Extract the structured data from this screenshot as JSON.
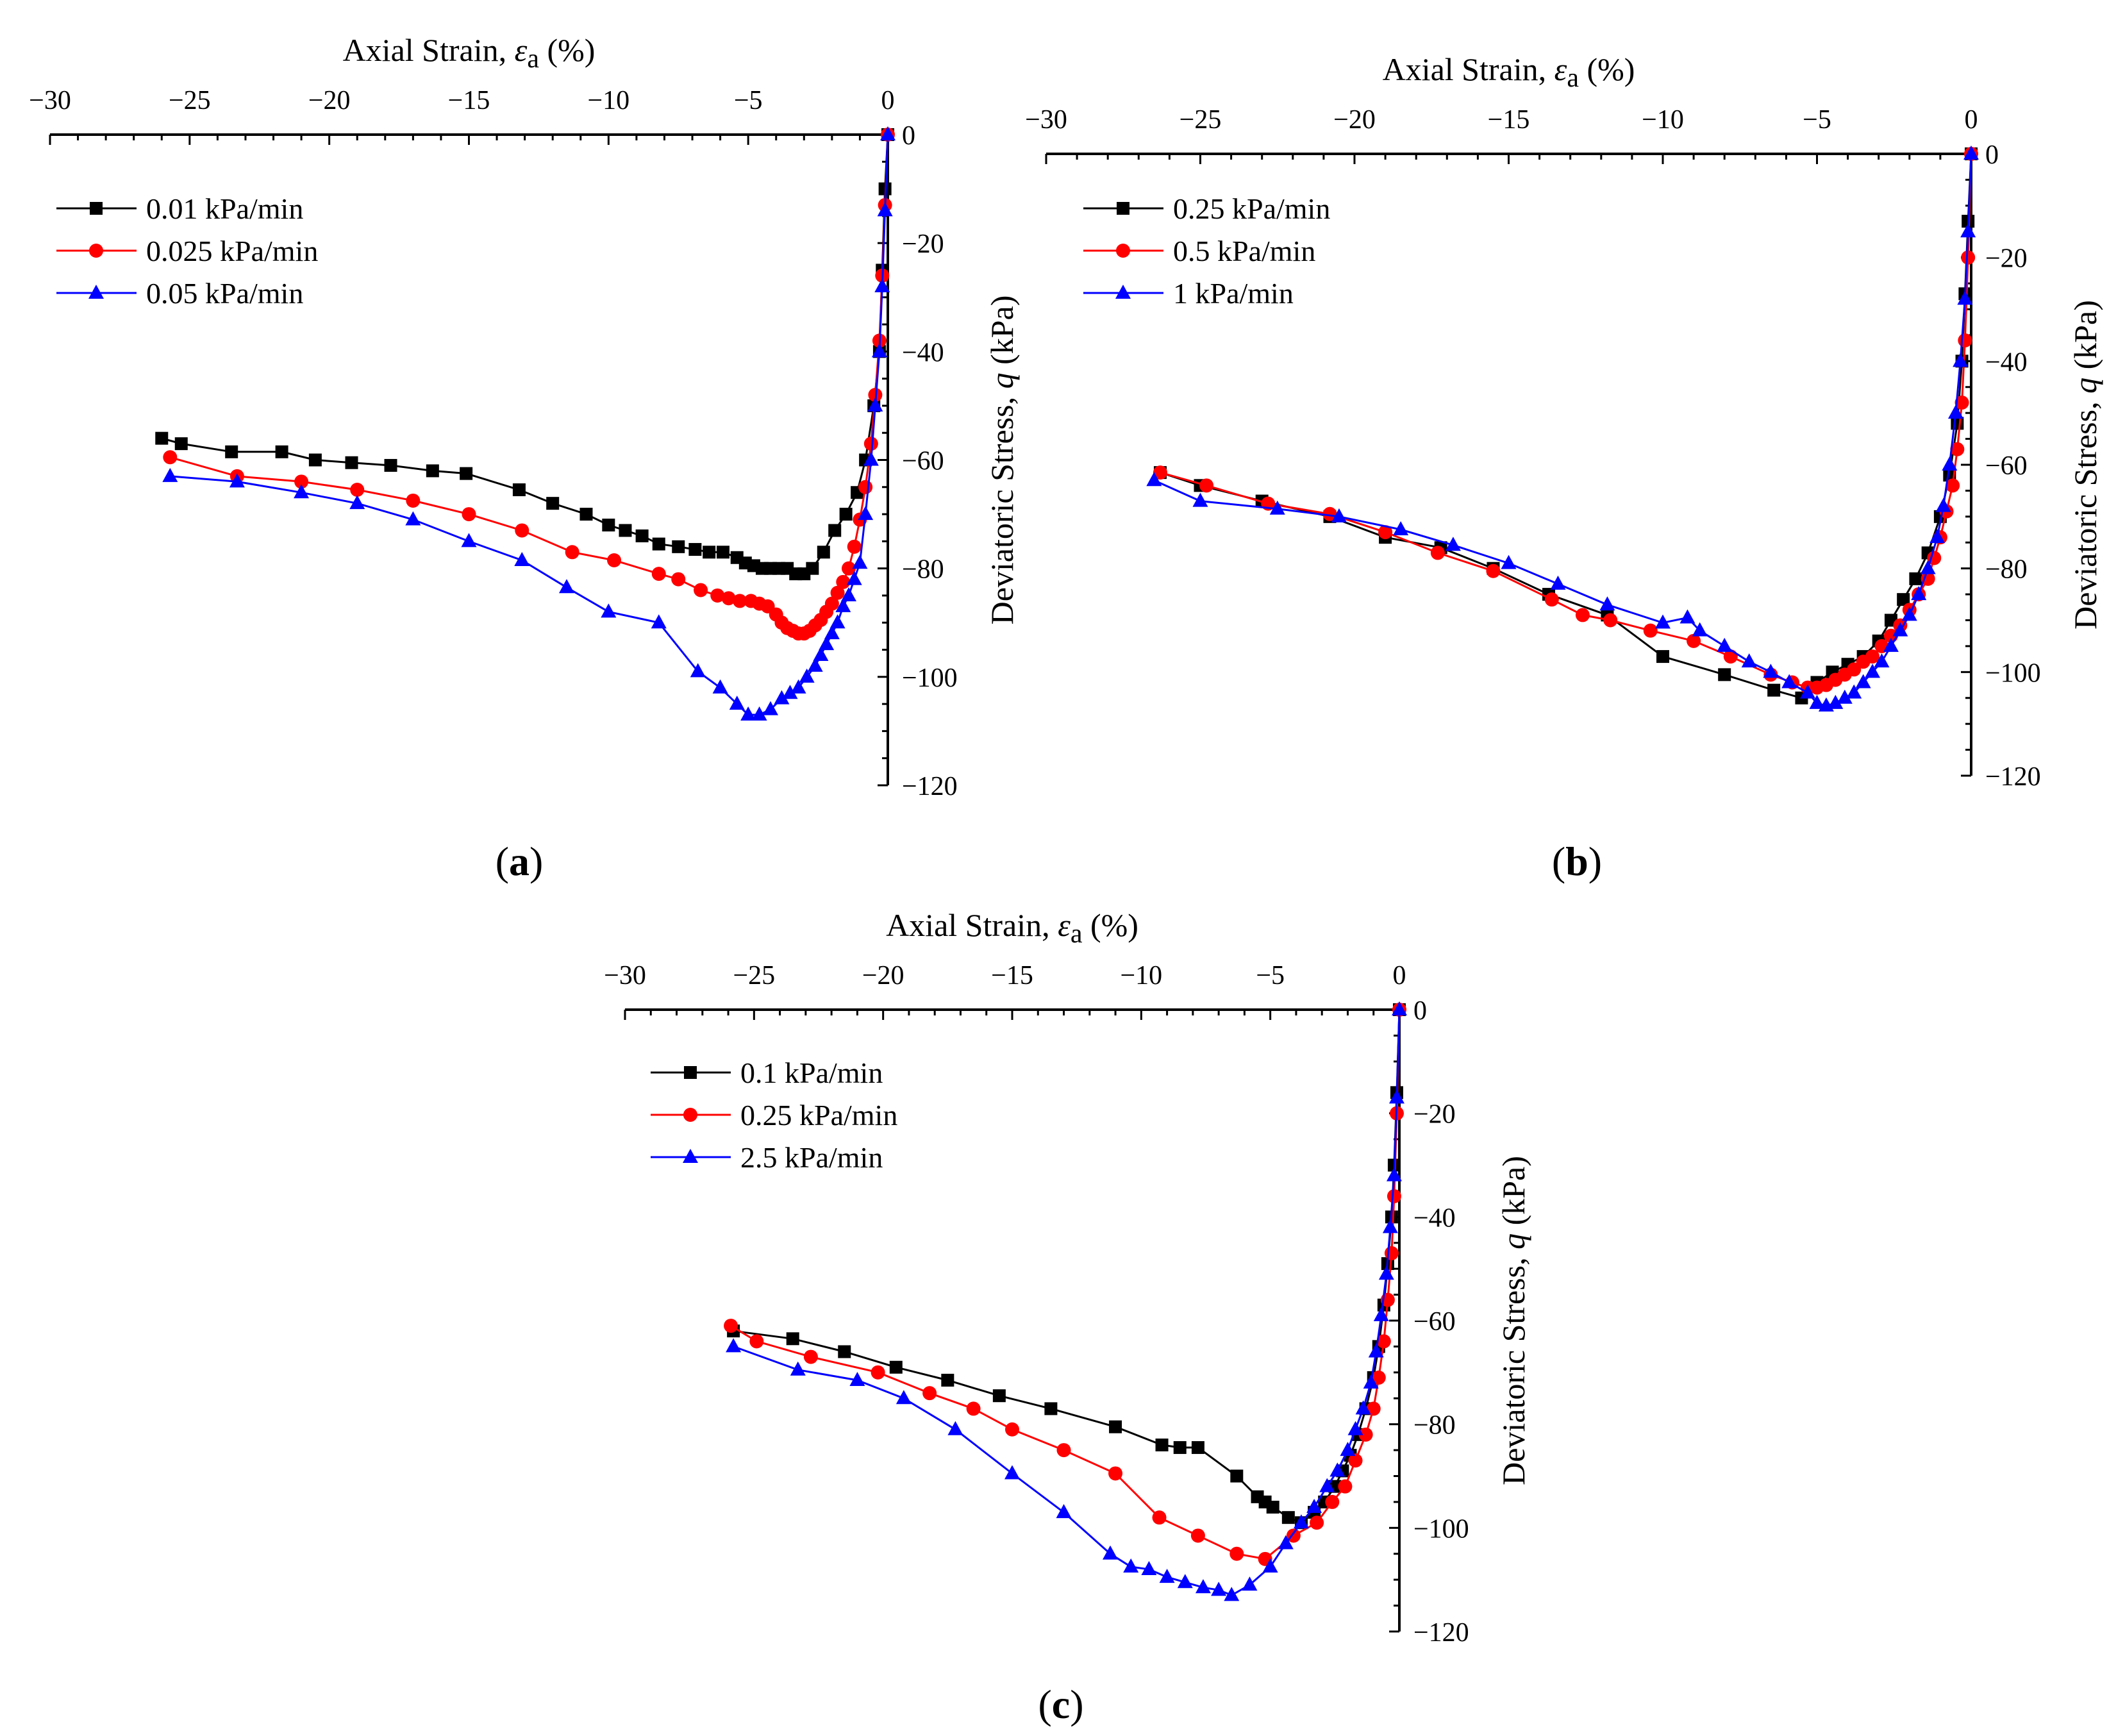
{
  "chart_data": [
    {
      "type": "line",
      "panel_label": "(a)",
      "xlabel": "Axial Strain, εa (%)",
      "xlabel_parts": [
        "Axial Strain, ",
        "ε",
        "a",
        " (%)"
      ],
      "ylabel": "Deviatoric Stress, q (kPa)",
      "ylabel_parts": [
        "Deviatoric Stress, ",
        "q",
        " (kPa)"
      ],
      "xlim": [
        -30,
        0
      ],
      "ylim": [
        -120,
        0
      ],
      "xticks": [
        -30,
        -25,
        -20,
        -15,
        -10,
        -5,
        0
      ],
      "yticks": [
        0,
        -20,
        -40,
        -60,
        -80,
        -100,
        -120
      ],
      "x_axis_position": "top",
      "y_axis_position": "right",
      "legend_position": "top-left",
      "series": [
        {
          "name": "0.01  kPa/min",
          "color": "#000000",
          "marker": "square",
          "x": [
            -26.0,
            -25.3,
            -23.5,
            -21.7,
            -20.5,
            -19.2,
            -17.8,
            -16.3,
            -15.1,
            -13.2,
            -12.0,
            -10.8,
            -10.0,
            -9.4,
            -8.8,
            -8.2,
            -7.5,
            -6.9,
            -6.4,
            -5.9,
            -5.4,
            -5.1,
            -4.8,
            -4.5,
            -4.2,
            -3.9,
            -3.6,
            -3.3,
            -3.0,
            -2.7,
            -2.3,
            -1.9,
            -1.5,
            -1.1,
            -0.8,
            -0.5,
            -0.3,
            -0.2,
            -0.1,
            0.0
          ],
          "y": [
            -56,
            -57,
            -58.5,
            -58.5,
            -60,
            -60.5,
            -61,
            -62,
            -62.5,
            -65.5,
            -68,
            -70,
            -72,
            -73,
            -74,
            -75.5,
            -76,
            -76.5,
            -77,
            -77,
            -78,
            -79,
            -79.5,
            -80,
            -80,
            -80,
            -80,
            -81,
            -81,
            -80,
            -77,
            -73,
            -70,
            -66,
            -60,
            -50,
            -40,
            -25,
            -10,
            0
          ]
        },
        {
          "name": "0.025 kPa/min",
          "color": "#ff0000",
          "marker": "circle",
          "x": [
            -25.7,
            -23.3,
            -21.0,
            -19.0,
            -17.0,
            -15.0,
            -13.1,
            -11.3,
            -9.8,
            -8.2,
            -7.5,
            -6.7,
            -6.1,
            -5.7,
            -5.3,
            -4.9,
            -4.6,
            -4.3,
            -4.0,
            -3.8,
            -3.6,
            -3.4,
            -3.2,
            -3.0,
            -2.8,
            -2.6,
            -2.4,
            -2.2,
            -2.0,
            -1.8,
            -1.6,
            -1.4,
            -1.2,
            -1.0,
            -0.8,
            -0.6,
            -0.45,
            -0.3,
            -0.2,
            -0.1,
            0.0
          ],
          "y": [
            -59.5,
            -63,
            -64,
            -65.5,
            -67.5,
            -70,
            -73,
            -77,
            -78.5,
            -81,
            -82,
            -84,
            -85,
            -85.5,
            -86,
            -86,
            -86.5,
            -87,
            -88.5,
            -90,
            -91,
            -91.5,
            -92,
            -92,
            -91.5,
            -90.5,
            -89.5,
            -88,
            -86.5,
            -84.5,
            -82.5,
            -80,
            -76,
            -71,
            -65,
            -57,
            -48,
            -38,
            -26,
            -13,
            0
          ]
        },
        {
          "name": "0.05  kPa/min",
          "color": "#0000ff",
          "marker": "triangle",
          "x": [
            -25.7,
            -23.3,
            -21.0,
            -19.0,
            -17.0,
            -15.0,
            -13.1,
            -11.5,
            -10.0,
            -8.2,
            -6.8,
            -6.0,
            -5.4,
            -5.0,
            -4.6,
            -4.2,
            -3.8,
            -3.5,
            -3.2,
            -2.9,
            -2.6,
            -2.4,
            -2.2,
            -2.0,
            -1.8,
            -1.6,
            -1.4,
            -1.2,
            -1.0,
            -0.8,
            -0.6,
            -0.45,
            -0.3,
            -0.2,
            -0.1,
            0.0
          ],
          "y": [
            -63,
            -64,
            -66,
            -68,
            -71,
            -75,
            -78.5,
            -83.5,
            -88,
            -90,
            -99,
            -102,
            -105,
            -107,
            -107,
            -106,
            -104,
            -103,
            -102,
            -100,
            -98,
            -96,
            -94,
            -92,
            -90,
            -87,
            -85,
            -82,
            -79,
            -70,
            -60,
            -50,
            -40,
            -28,
            -14,
            0
          ]
        }
      ]
    },
    {
      "type": "line",
      "panel_label": "(b)",
      "xlabel": "Axial Strain, εa (%)",
      "xlabel_parts": [
        "Axial Strain, ",
        "ε",
        "a",
        " (%)"
      ],
      "ylabel": "Deviatoric Stress, q (kPa)",
      "ylabel_parts": [
        "Deviatoric Stress, ",
        "q",
        " (kPa)"
      ],
      "xlim": [
        -30,
        0
      ],
      "ylim": [
        -120,
        0
      ],
      "xticks": [
        -30,
        -25,
        -20,
        -15,
        -10,
        -5,
        0
      ],
      "yticks": [
        0,
        -20,
        -40,
        -60,
        -80,
        -100,
        -120
      ],
      "x_axis_position": "top",
      "y_axis_position": "right",
      "legend_position": "top-left",
      "series": [
        {
          "name": "0.25  kPa/min",
          "color": "#000000",
          "marker": "square",
          "x": [
            -26.3,
            -25.0,
            -23.0,
            -20.8,
            -19.0,
            -17.2,
            -15.5,
            -13.7,
            -11.8,
            -10.0,
            -8.0,
            -6.4,
            -5.5,
            -5.0,
            -4.5,
            -4.0,
            -3.5,
            -3.0,
            -2.6,
            -2.2,
            -1.8,
            -1.4,
            -1.0,
            -0.7,
            -0.45,
            -0.3,
            -0.2,
            -0.1,
            0.0
          ],
          "y": [
            -61.5,
            -64,
            -67,
            -70,
            -74,
            -76,
            -80,
            -85,
            -89,
            -97,
            -100.5,
            -103.5,
            -105,
            -102,
            -100,
            -98.5,
            -97,
            -94,
            -90,
            -86,
            -82,
            -77,
            -70,
            -62,
            -52,
            -40,
            -27,
            -13,
            0
          ]
        },
        {
          "name": " 0.5  kPa/min",
          "color": "#ff0000",
          "marker": "circle",
          "x": [
            -26.3,
            -24.8,
            -22.8,
            -20.8,
            -19.0,
            -17.3,
            -15.5,
            -13.6,
            -12.6,
            -11.7,
            -10.4,
            -9.0,
            -7.8,
            -6.5,
            -5.8,
            -5.3,
            -5.0,
            -4.7,
            -4.4,
            -4.1,
            -3.8,
            -3.5,
            -3.2,
            -2.9,
            -2.6,
            -2.3,
            -2.0,
            -1.7,
            -1.4,
            -1.2,
            -1.0,
            -0.8,
            -0.6,
            -0.45,
            -0.3,
            -0.2,
            -0.1,
            0.0
          ],
          "y": [
            -61.5,
            -64,
            -67.5,
            -69.5,
            -73,
            -77,
            -80.5,
            -86,
            -89,
            -90,
            -92,
            -94,
            -97,
            -100.5,
            -102,
            -103,
            -103,
            -102.5,
            -101.5,
            -100.5,
            -99.5,
            -98,
            -97,
            -95,
            -93,
            -91,
            -88,
            -85,
            -82,
            -78,
            -74,
            -69,
            -64,
            -57,
            -48,
            -36,
            -20,
            0
          ]
        },
        {
          "name": " 1     kPa/min",
          "color": "#0000ff",
          "marker": "triangle",
          "x": [
            -26.5,
            -25.0,
            -22.5,
            -20.5,
            -18.5,
            -16.8,
            -15.0,
            -13.4,
            -11.8,
            -10.0,
            -9.2,
            -8.8,
            -8.0,
            -7.2,
            -6.5,
            -5.9,
            -5.3,
            -5.0,
            -4.7,
            -4.4,
            -4.1,
            -3.8,
            -3.5,
            -3.2,
            -2.9,
            -2.6,
            -2.3,
            -2.0,
            -1.7,
            -1.4,
            -1.1,
            -0.9,
            -0.7,
            -0.5,
            -0.35,
            -0.2,
            -0.1,
            0.0
          ],
          "y": [
            -63,
            -67,
            -68.5,
            -70,
            -72.5,
            -75.5,
            -79,
            -83,
            -87,
            -90.5,
            -89.5,
            -92,
            -95,
            -98,
            -100,
            -102,
            -104,
            -106,
            -106.5,
            -106,
            -105,
            -104,
            -102,
            -100,
            -98,
            -95,
            -92,
            -89,
            -85,
            -80,
            -74,
            -68,
            -60,
            -50,
            -40,
            -28,
            -15,
            0
          ]
        }
      ]
    },
    {
      "type": "line",
      "panel_label": "(c)",
      "xlabel": "Axial Strain, εa (%)",
      "xlabel_parts": [
        "Axial Strain, ",
        "ε",
        "a",
        " (%)"
      ],
      "ylabel": "Deviatoric Stress, q (kPa)",
      "ylabel_parts": [
        "Deviatoric Stress, ",
        "q",
        " (kPa)"
      ],
      "xlim": [
        -30,
        0
      ],
      "ylim": [
        -120,
        0
      ],
      "xticks": [
        -30,
        -25,
        -20,
        -15,
        -10,
        -5,
        0
      ],
      "yticks": [
        0,
        -20,
        -40,
        -60,
        -80,
        -100,
        -120
      ],
      "x_axis_position": "top",
      "y_axis_position": "right",
      "legend_position": "top-left",
      "series": [
        {
          "name": "0.1  kPa/min",
          "color": "#000000",
          "marker": "square",
          "x": [
            -25.8,
            -23.5,
            -21.5,
            -19.5,
            -17.5,
            -15.5,
            -13.5,
            -11.0,
            -9.2,
            -8.5,
            -7.8,
            -6.3,
            -5.5,
            -5.2,
            -4.9,
            -4.3,
            -3.8,
            -3.3,
            -2.9,
            -2.5,
            -2.2,
            -1.9,
            -1.6,
            -1.3,
            -1.0,
            -0.8,
            -0.6,
            -0.45,
            -0.3,
            -0.2,
            -0.1,
            0.0
          ],
          "y": [
            -62,
            -63.5,
            -66,
            -69,
            -71.5,
            -74.5,
            -77,
            -80.5,
            -84,
            -84.5,
            -84.5,
            -90,
            -94,
            -95,
            -96,
            -98,
            -99,
            -97,
            -95,
            -92,
            -89,
            -86,
            -82,
            -77,
            -71,
            -65,
            -57,
            -49,
            -40,
            -30,
            -16,
            0
          ]
        },
        {
          "name": "0.25 kPa/min",
          "color": "#ff0000",
          "marker": "circle",
          "x": [
            -25.9,
            -24.9,
            -22.8,
            -20.2,
            -18.2,
            -16.5,
            -15.0,
            -13.0,
            -11.0,
            -9.3,
            -7.8,
            -6.3,
            -5.2,
            -4.1,
            -3.2,
            -2.6,
            -2.1,
            -1.7,
            -1.3,
            -1.0,
            -0.8,
            -0.6,
            -0.45,
            -0.3,
            -0.2,
            -0.1,
            0.0
          ],
          "y": [
            -61,
            -64,
            -67,
            -70,
            -74,
            -77,
            -81,
            -85,
            -89.5,
            -98,
            -101.5,
            -105,
            -106,
            -101.5,
            -99,
            -95,
            -92,
            -87,
            -82,
            -77,
            -71,
            -64,
            -56,
            -47,
            -36,
            -20,
            0
          ]
        },
        {
          "name": "2.5  kPa/min",
          "color": "#0000ff",
          "marker": "triangle",
          "x": [
            -25.8,
            -23.3,
            -21.0,
            -19.2,
            -17.2,
            -15.0,
            -13.0,
            -11.2,
            -10.4,
            -9.7,
            -9.0,
            -8.3,
            -7.6,
            -7.0,
            -6.5,
            -5.8,
            -5.0,
            -4.4,
            -3.8,
            -3.3,
            -2.8,
            -2.4,
            -2.0,
            -1.7,
            -1.4,
            -1.1,
            -0.9,
            -0.7,
            -0.5,
            -0.35,
            -0.2,
            -0.1,
            0.0
          ],
          "y": [
            -65,
            -69.5,
            -71.5,
            -75,
            -81,
            -89.5,
            -97,
            -105,
            -107.5,
            -108,
            -109.5,
            -110.5,
            -111.5,
            -112,
            -113,
            -111,
            -107.5,
            -103,
            -99,
            -96,
            -92,
            -89,
            -85,
            -81,
            -77,
            -72,
            -66,
            -59,
            -51,
            -42,
            -32,
            -17,
            0
          ]
        }
      ]
    }
  ]
}
